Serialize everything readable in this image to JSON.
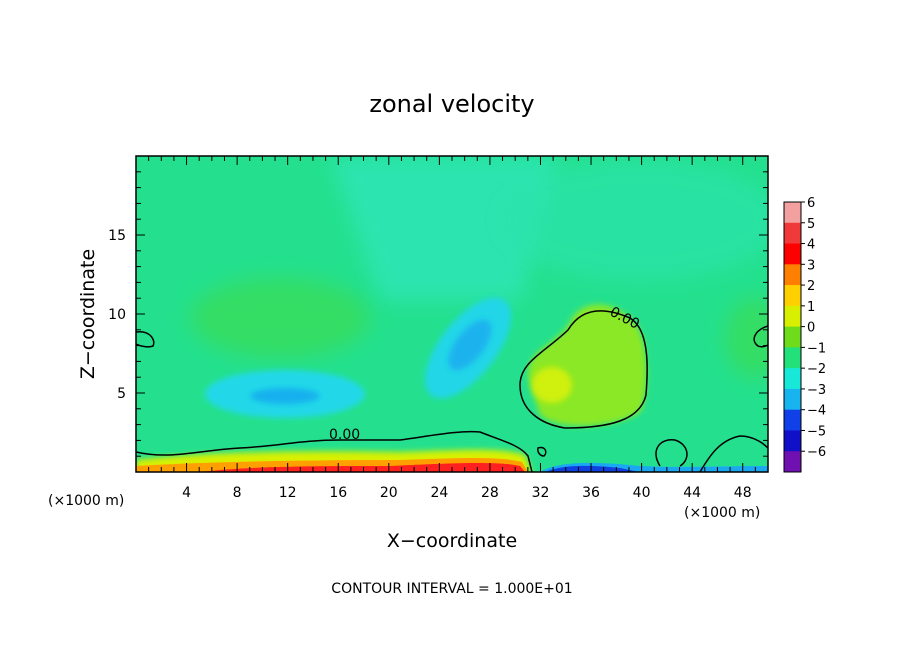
{
  "chart_data": {
    "type": "heatmap",
    "title": "zonal velocity",
    "xlabel": "X−coordinate",
    "ylabel": "Z−coordinate",
    "x_unit": "(×1000 m)",
    "y_unit": "(×1000 m)",
    "xlim": [
      0,
      50
    ],
    "ylim": [
      0,
      20
    ],
    "x_ticks": [
      4,
      8,
      12,
      16,
      20,
      24,
      28,
      32,
      36,
      40,
      44,
      48
    ],
    "y_ticks": [
      5,
      10,
      15
    ],
    "footer": "CONTOUR INTERVAL = 1.000E+01",
    "contour_labels": [
      {
        "text": "0.00",
        "x": 16.5,
        "z": 2.1
      },
      {
        "text": "0.00",
        "x": 38.5,
        "z": 9.5
      }
    ],
    "colorbar": {
      "levels": [
        6,
        5,
        4,
        3,
        2,
        1,
        0,
        -1,
        -2,
        -3,
        -4,
        -5,
        -6
      ],
      "labels": [
        "6",
        "5",
        "4",
        "3",
        "2",
        "1",
        "0",
        "−1",
        "−2",
        "−3",
        "−4",
        "−5",
        "−6"
      ],
      "colors": [
        "#f2a0a0",
        "#f03a3a",
        "#ff0000",
        "#ff8000",
        "#ffd000",
        "#d8f000",
        "#6edc1a",
        "#22e07a",
        "#18e8d8",
        "#18b4f0",
        "#1040e8",
        "#1010c8",
        "#7010b0"
      ]
    },
    "field_features": [
      {
        "type": "background",
        "value": -1.0
      },
      {
        "type": "blob",
        "x": 12,
        "z": 4.8,
        "rx": 5,
        "rz": 1.5,
        "value": -2.6
      },
      {
        "type": "blob",
        "x": 26.5,
        "z": 8,
        "rx": 2.5,
        "rz": 2.5,
        "value": -2.6
      },
      {
        "type": "blob",
        "x": 34,
        "z": 6.8,
        "rx": 4.5,
        "rz": 3.5,
        "value": 1.2
      },
      {
        "type": "blob",
        "x": 11,
        "z": 10,
        "rx": 6,
        "rz": 3,
        "value": 0.2
      },
      {
        "type": "surface_jet",
        "x_from": 0,
        "x_to": 31,
        "z_top": 1.5,
        "value": 4.5
      },
      {
        "type": "surface_band",
        "x_from": 32,
        "x_to": 44,
        "z_top": 0.4,
        "value": -4.5
      }
    ]
  }
}
